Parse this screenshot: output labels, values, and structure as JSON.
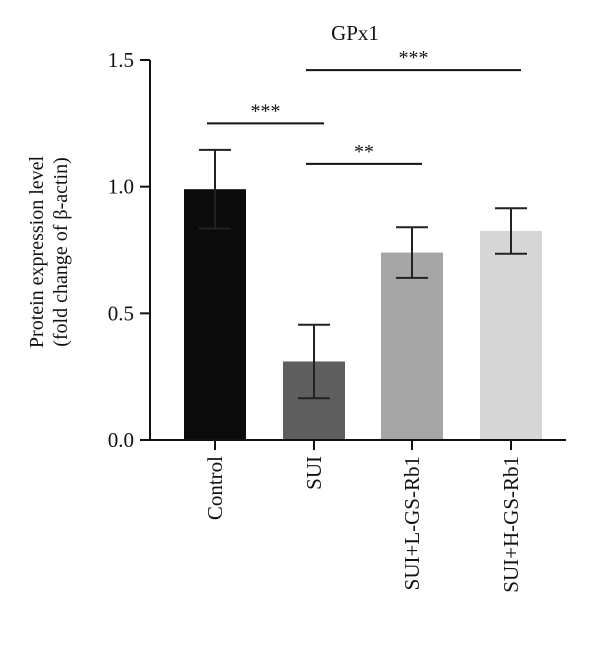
{
  "chart_data": {
    "type": "bar",
    "title": "GPx1",
    "ylabel_line1": "Protein expression level",
    "ylabel_line2": "(fold change of β-actin)",
    "xlabel": "",
    "ylim": [
      0,
      1.5
    ],
    "yticks": [
      0.0,
      0.5,
      1.0,
      1.5
    ],
    "ytick_labels": [
      "0.0",
      "0.5",
      "1.0",
      "1.5"
    ],
    "categories": [
      "Control",
      "SUI",
      "SUI+L-GS-Rb1",
      "SUI+H-GS-Rb1"
    ],
    "values": [
      0.99,
      0.31,
      0.74,
      0.825
    ],
    "errors": [
      0.155,
      0.145,
      0.1,
      0.09
    ],
    "colors": [
      "#0b0b0b",
      "#5e5e5e",
      "#a6a6a6",
      "#d6d6d6"
    ],
    "grid": false,
    "significance": [
      {
        "from": 0,
        "to": 1,
        "label": "***",
        "y": 1.25
      },
      {
        "from": 1,
        "to": 2,
        "label": "**",
        "y": 1.09
      },
      {
        "from": 1,
        "to": 3,
        "label": "***",
        "y": 1.46
      }
    ]
  }
}
